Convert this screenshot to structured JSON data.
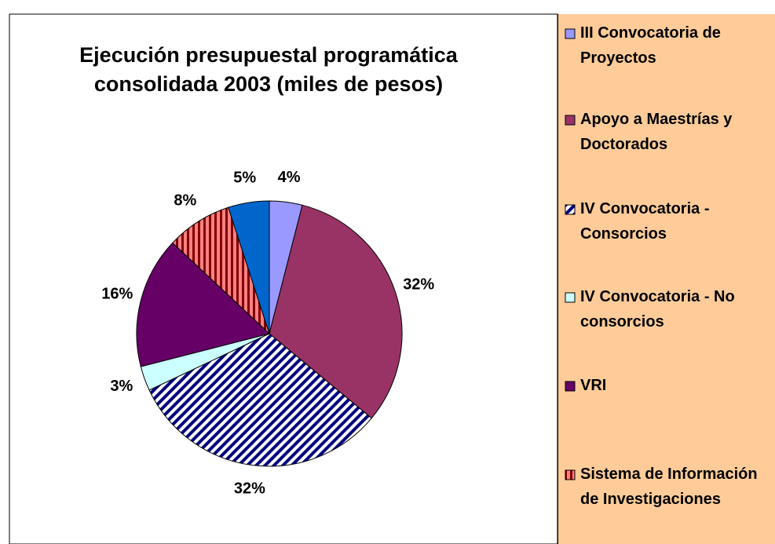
{
  "chart_data": {
    "type": "pie",
    "title": "Ejecución presupuestal programática consolidada 2003 (miles de pesos)",
    "categories": [
      "III Convocatoria de Proyectos",
      "Apoyo a Maestrías y Doctorados",
      "IV Convocatoria - Consorcios",
      "IV Convocatoria - No consorcios",
      "VRI",
      "Sistema de Información de Investigaciones",
      null
    ],
    "values": [
      4,
      32,
      32,
      3,
      16,
      8,
      5
    ],
    "value_labels": [
      "4%",
      "32%",
      "32%",
      "3%",
      "16%",
      "8%",
      "5%"
    ],
    "colors": [
      "#9999FF",
      "#993366",
      "#000080",
      "#CCFFFF",
      "#660066",
      "#800000",
      "#0066CC"
    ],
    "patterns": [
      null,
      null,
      "diagonal",
      null,
      null,
      "vertical",
      null
    ]
  }
}
